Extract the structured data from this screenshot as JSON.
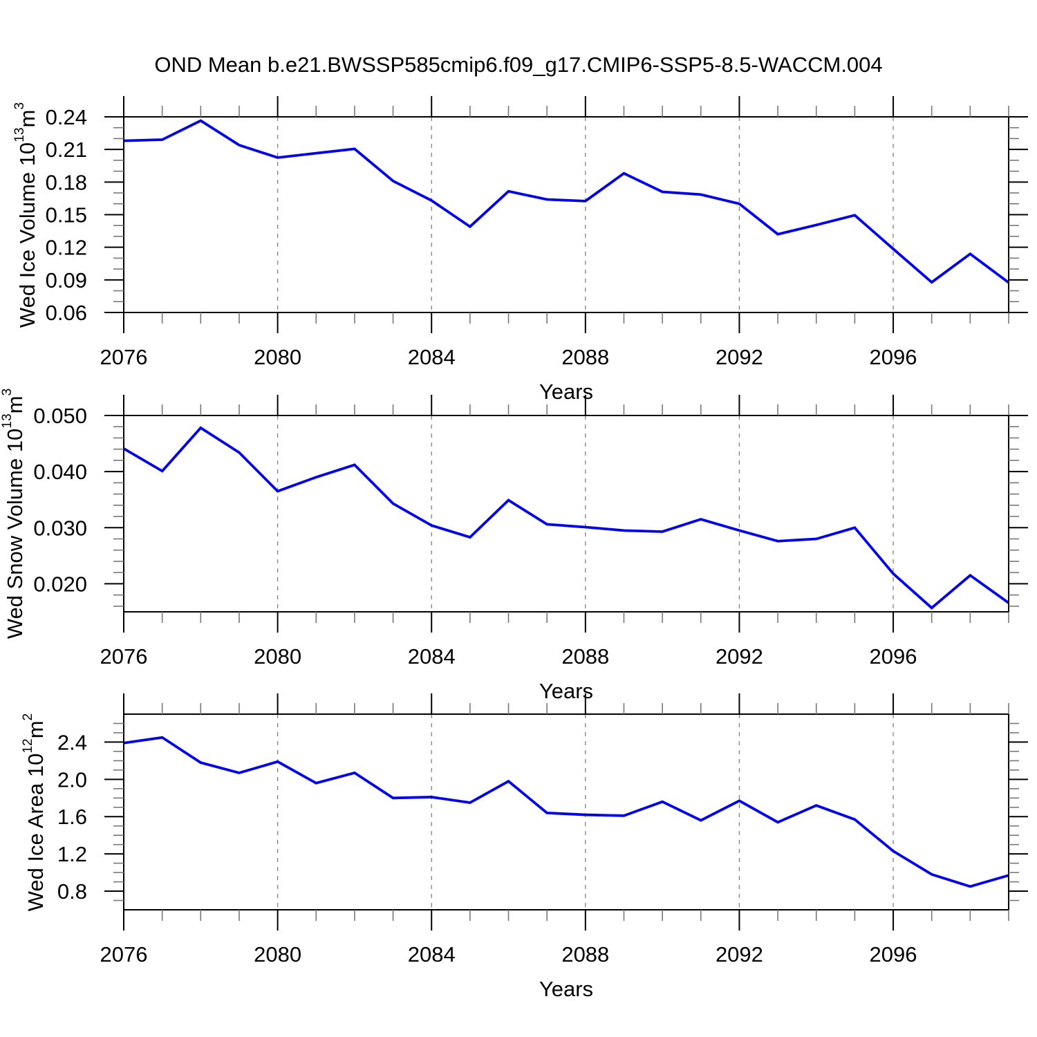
{
  "title": "OND Mean b.e21.BWSSP585cmip6.f09_g17.CMIP6-SSP5-8.5-WACCM.004",
  "colors": {
    "line": "#0000EE",
    "axis": "#000000",
    "grid": "#808080",
    "minor_tick": "#777777",
    "background": "#ffffff"
  },
  "chart_data": [
    {
      "type": "line",
      "panel": "ice-volume",
      "ylabel_parts": [
        {
          "t": "Wed Ice Volume 10"
        },
        {
          "t": "13",
          "sup": true
        },
        {
          "t": " m"
        },
        {
          "t": "3",
          "sup": true
        }
      ],
      "xlabel": "Years",
      "x": [
        2076,
        2077,
        2078,
        2079,
        2080,
        2081,
        2082,
        2083,
        2084,
        2085,
        2086,
        2087,
        2088,
        2089,
        2090,
        2091,
        2092,
        2093,
        2094,
        2095,
        2096,
        2097,
        2098,
        2099
      ],
      "values": [
        0.218,
        0.219,
        0.2365,
        0.214,
        0.2025,
        0.2065,
        0.2105,
        0.181,
        0.163,
        0.139,
        0.1715,
        0.164,
        0.1625,
        0.188,
        0.171,
        0.1685,
        0.16,
        0.132,
        0.1405,
        0.1495,
        0.1185,
        0.0878,
        0.1139,
        0.0875
      ],
      "xlim": [
        2076,
        2099
      ],
      "ylim": [
        0.06,
        0.24
      ],
      "yticks": [
        0.06,
        0.09,
        0.12,
        0.15,
        0.18,
        0.21,
        0.24
      ],
      "ytick_labels": [
        "0.06",
        "0.09",
        "0.12",
        "0.15",
        "0.18",
        "0.21",
        "0.24"
      ],
      "yminor_step": 0.01,
      "xticks_major": [
        2076,
        2080,
        2084,
        2088,
        2092,
        2096
      ],
      "xtick_labels": [
        "2076",
        "2080",
        "2084",
        "2088",
        "2092",
        "2096"
      ],
      "xminor_step": 1,
      "grid_x": [
        2080,
        2084,
        2088,
        2092,
        2096
      ]
    },
    {
      "type": "line",
      "panel": "snow-volume",
      "ylabel_parts": [
        {
          "t": "Wed Snow Volume 10"
        },
        {
          "t": "13",
          "sup": true
        },
        {
          "t": " m"
        },
        {
          "t": "3",
          "sup": true
        }
      ],
      "xlabel": "Years",
      "x": [
        2076,
        2077,
        2078,
        2079,
        2080,
        2081,
        2082,
        2083,
        2084,
        2085,
        2086,
        2087,
        2088,
        2089,
        2090,
        2091,
        2092,
        2093,
        2094,
        2095,
        2096,
        2097,
        2098,
        2099
      ],
      "values": [
        0.0441,
        0.0401,
        0.0478,
        0.0434,
        0.0365,
        0.039,
        0.0412,
        0.0343,
        0.0304,
        0.0283,
        0.0349,
        0.0306,
        0.0301,
        0.0295,
        0.0293,
        0.0315,
        0.0295,
        0.0276,
        0.028,
        0.03,
        0.0218,
        0.0157,
        0.0215,
        0.0166
      ],
      "xlim": [
        2076,
        2099
      ],
      "ylim": [
        0.015,
        0.05
      ],
      "yticks": [
        0.02,
        0.03,
        0.04,
        0.05
      ],
      "ytick_labels": [
        "0.020",
        "0.030",
        "0.040",
        "0.050"
      ],
      "yminor_step": 0.002,
      "xticks_major": [
        2076,
        2080,
        2084,
        2088,
        2092,
        2096
      ],
      "xtick_labels": [
        "2076",
        "2080",
        "2084",
        "2088",
        "2092",
        "2096"
      ],
      "xminor_step": 1,
      "grid_x": [
        2080,
        2084,
        2088,
        2092,
        2096
      ]
    },
    {
      "type": "line",
      "panel": "ice-area",
      "ylabel_parts": [
        {
          "t": "Wed Ice Area 10"
        },
        {
          "t": "12",
          "sup": true
        },
        {
          "t": " m"
        },
        {
          "t": "2",
          "sup": true
        }
      ],
      "xlabel": "Years",
      "x": [
        2076,
        2077,
        2078,
        2079,
        2080,
        2081,
        2082,
        2083,
        2084,
        2085,
        2086,
        2087,
        2088,
        2089,
        2090,
        2091,
        2092,
        2093,
        2094,
        2095,
        2096,
        2097,
        2098,
        2099
      ],
      "values": [
        2.39,
        2.45,
        2.18,
        2.07,
        2.19,
        1.96,
        2.07,
        1.8,
        1.81,
        1.75,
        1.98,
        1.64,
        1.62,
        1.61,
        1.76,
        1.56,
        1.77,
        1.54,
        1.72,
        1.57,
        1.23,
        0.98,
        0.85,
        0.97
      ],
      "xlim": [
        2076,
        2099
      ],
      "ylim": [
        0.6,
        2.7
      ],
      "yticks": [
        0.8,
        1.2,
        1.6,
        2.0,
        2.4
      ],
      "ytick_labels": [
        "0.8",
        "1.2",
        "1.6",
        "2.0",
        "2.4"
      ],
      "yminor_step": 0.1,
      "xticks_major": [
        2076,
        2080,
        2084,
        2088,
        2092,
        2096
      ],
      "xtick_labels": [
        "2076",
        "2080",
        "2084",
        "2088",
        "2092",
        "2096"
      ],
      "xminor_step": 1,
      "grid_x": [
        2080,
        2084,
        2088,
        2092,
        2096
      ]
    }
  ]
}
